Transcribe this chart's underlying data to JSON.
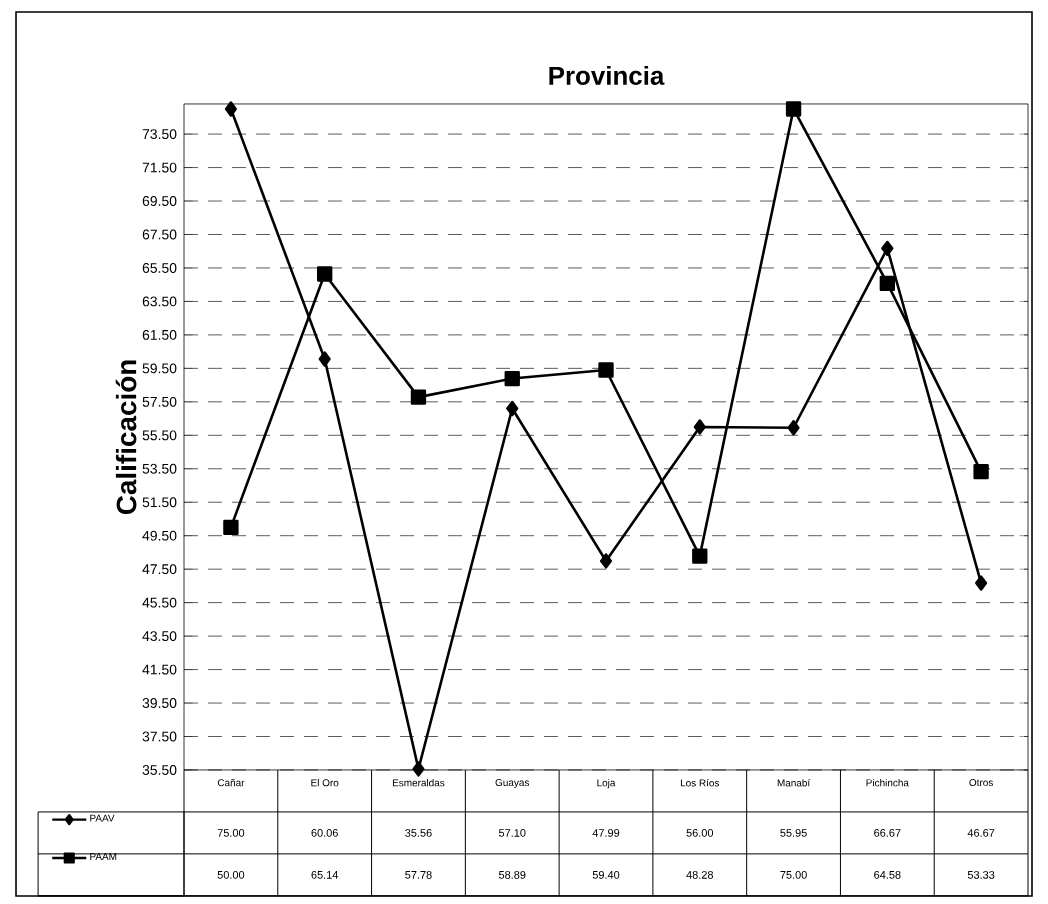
{
  "chart_data": {
    "type": "line",
    "title": "Provincia",
    "ylabel": "Calificación",
    "categories": [
      "Cañar",
      "El Oro",
      "Esmeraldas",
      "Guayas",
      "Loja",
      "Los Ríos",
      "Manabí",
      "Pichincha",
      "Otros"
    ],
    "series": [
      {
        "name": "PAAV",
        "color": "#000000",
        "marker": "diamond",
        "values": [
          75.0,
          60.06,
          35.56,
          57.1,
          47.99,
          56.0,
          55.95,
          66.67,
          46.67
        ],
        "value_labels": [
          "75.00",
          "60.06",
          "35.56",
          "57.10",
          "47.99",
          "56.00",
          "55.95",
          "66.67",
          "46.67"
        ]
      },
      {
        "name": "PAAM",
        "color": "#000000",
        "marker": "square",
        "values": [
          50.0,
          65.14,
          57.78,
          58.89,
          59.4,
          48.28,
          75.0,
          64.58,
          53.33
        ],
        "value_labels": [
          "50.00",
          "65.14",
          "57.78",
          "58.89",
          "59.40",
          "48.28",
          "75.00",
          "64.58",
          "53.33"
        ]
      }
    ],
    "ylim": [
      35.5,
      75.3
    ],
    "yticks": [
      {
        "value": 35.5,
        "label": "35.50"
      },
      {
        "value": 37.5,
        "label": "37.50"
      },
      {
        "value": 39.5,
        "label": "39.50"
      },
      {
        "value": 41.5,
        "label": "41.50"
      },
      {
        "value": 43.5,
        "label": "43.50"
      },
      {
        "value": 45.5,
        "label": "45.50"
      },
      {
        "value": 47.5,
        "label": "47.50"
      },
      {
        "value": 49.5,
        "label": "49.50"
      },
      {
        "value": 51.5,
        "label": "51.50"
      },
      {
        "value": 53.5,
        "label": "53.50"
      },
      {
        "value": 55.5,
        "label": "55.50"
      },
      {
        "value": 57.5,
        "label": "57.50"
      },
      {
        "value": 59.5,
        "label": "59.50"
      },
      {
        "value": 61.5,
        "label": "61.50"
      },
      {
        "value": 63.5,
        "label": "63.50"
      },
      {
        "value": 65.5,
        "label": "65.50"
      },
      {
        "value": 67.5,
        "label": "67.50"
      },
      {
        "value": 69.5,
        "label": "69.50"
      },
      {
        "value": 71.5,
        "label": "71.50"
      },
      {
        "value": 73.5,
        "label": "73.50"
      }
    ],
    "grid": "y",
    "legend": "bottom",
    "line_style": "solid"
  }
}
